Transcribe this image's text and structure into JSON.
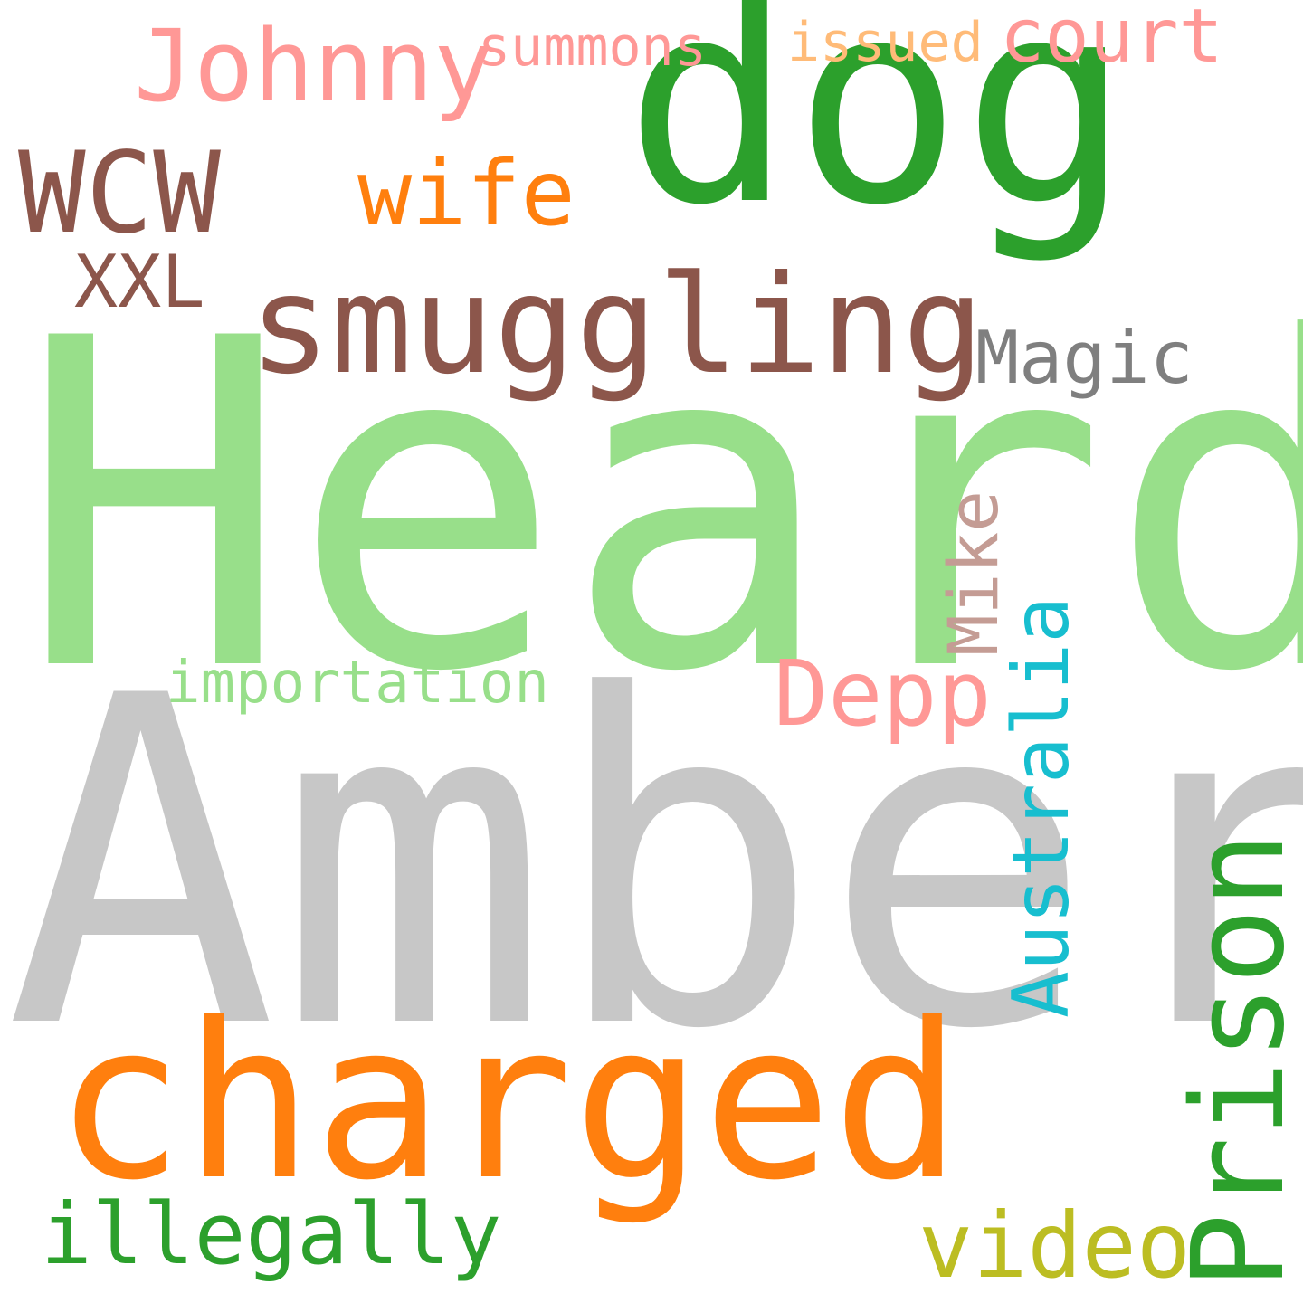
{
  "words": {
    "heard": {
      "text": "Heard",
      "color": "#98df8a"
    },
    "amber": {
      "text": "Amber",
      "color": "#c7c7c7"
    },
    "dog": {
      "text": "dog",
      "color": "#2ca02c"
    },
    "charged": {
      "text": "charged",
      "color": "#ff7f0e"
    },
    "smuggling": {
      "text": "smuggling",
      "color": "#8c564b"
    },
    "prison": {
      "text": "Prison",
      "color": "#2ca02c"
    },
    "wcw": {
      "text": "WCW",
      "color": "#8c564b"
    },
    "johnny": {
      "text": "Johnny",
      "color": "#ff9896"
    },
    "wife": {
      "text": "wife",
      "color": "#ff7f0e"
    },
    "depp": {
      "text": "Depp",
      "color": "#ff9896"
    },
    "video": {
      "text": "video",
      "color": "#bcbd22"
    },
    "illegally": {
      "text": "illegally",
      "color": "#2ca02c"
    },
    "australia": {
      "text": "Australia",
      "color": "#17becf"
    },
    "court": {
      "text": "court",
      "color": "#ff9896"
    },
    "magic": {
      "text": "Magic",
      "color": "#7f7f7f"
    },
    "xxl": {
      "text": "XXL",
      "color": "#8c564b"
    },
    "mike": {
      "text": "Mike",
      "color": "#c49c94"
    },
    "summons": {
      "text": "summons",
      "color": "#ff9896"
    },
    "issued": {
      "text": "issued",
      "color": "#ffbb78"
    },
    "importation": {
      "text": "importation",
      "color": "#98df8a"
    }
  }
}
